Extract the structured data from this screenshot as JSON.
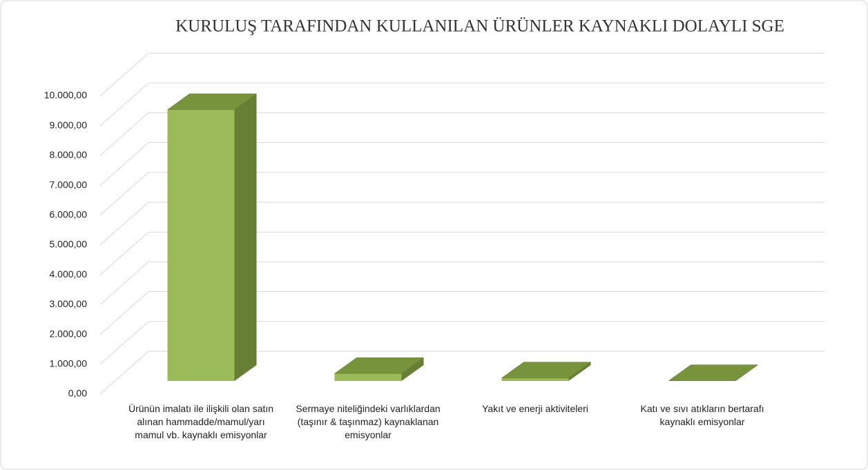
{
  "chart_data": {
    "type": "bar3d",
    "title": "KURULUŞ TARAFINDAN KULLANILAN ÜRÜNLER KAYNAKLI DOLAYLI SGE",
    "categories": [
      "Ürünün imalatı ile ilişkili olan satın alınan hammadde/mamul/yarı mamul vb. kaynaklı emisyonlar",
      "Sermaye niteliğindeki varlıklardan (taşınır & taşınmaz) kaynaklanan emisyonlar",
      "Yakıt ve enerji aktiviteleri",
      "Katı ve sıvı atıkların bertarafı kaynaklı emisyonlar"
    ],
    "values": [
      9100,
      250,
      100,
      10
    ],
    "color": "#9bbb59",
    "ylim": [
      0,
      10000
    ],
    "yticks": [
      {
        "value": 0,
        "label": "0,00"
      },
      {
        "value": 1000,
        "label": "1.000,00"
      },
      {
        "value": 2000,
        "label": "2.000,00"
      },
      {
        "value": 3000,
        "label": "3.000,00"
      },
      {
        "value": 4000,
        "label": "4.000,00"
      },
      {
        "value": 5000,
        "label": "5.000,00"
      },
      {
        "value": 6000,
        "label": "6.000,00"
      },
      {
        "value": 7000,
        "label": "7.000,00"
      },
      {
        "value": 8000,
        "label": "8.000,00"
      },
      {
        "value": 9000,
        "label": "9.000,00"
      },
      {
        "value": 10000,
        "label": "10.000,00"
      }
    ],
    "grid": true
  }
}
